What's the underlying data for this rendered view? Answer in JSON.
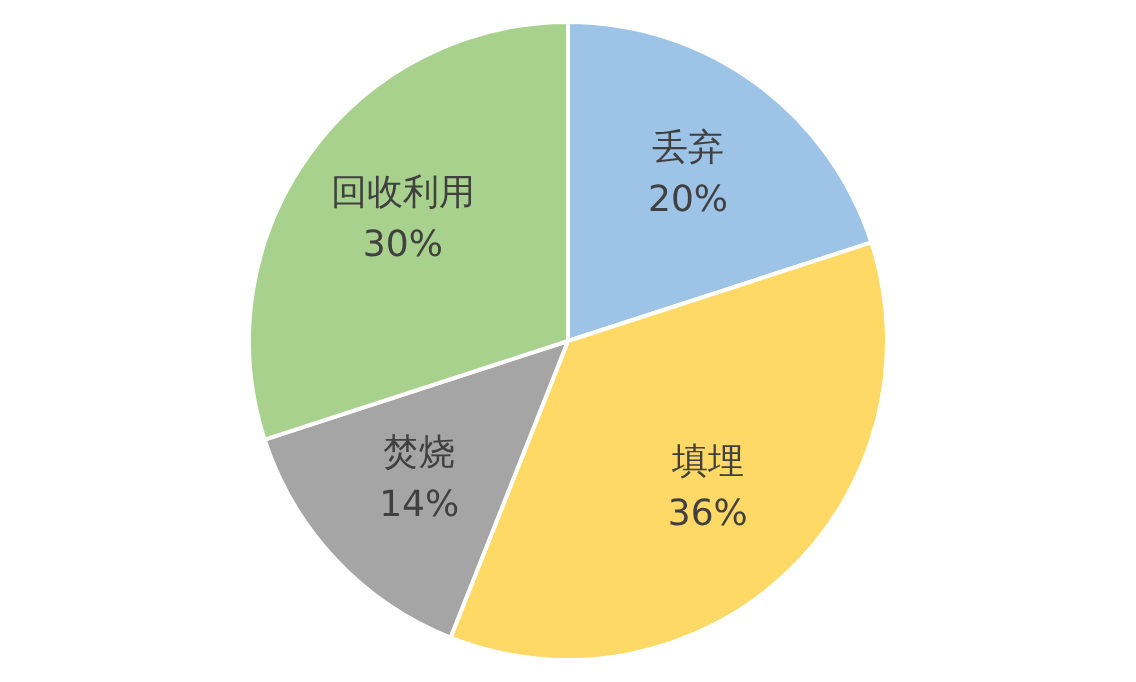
{
  "chart_data": {
    "type": "pie",
    "categories": [
      "丢弃",
      "填埋",
      "焚烧",
      "回收利用"
    ],
    "values": [
      20,
      36,
      14,
      30
    ],
    "colors": [
      "#9dc3e6",
      "#ffd966",
      "#a5a5a5",
      "#a9d18e"
    ],
    "value_labels": [
      "20%",
      "36%",
      "14%",
      "30%"
    ]
  }
}
